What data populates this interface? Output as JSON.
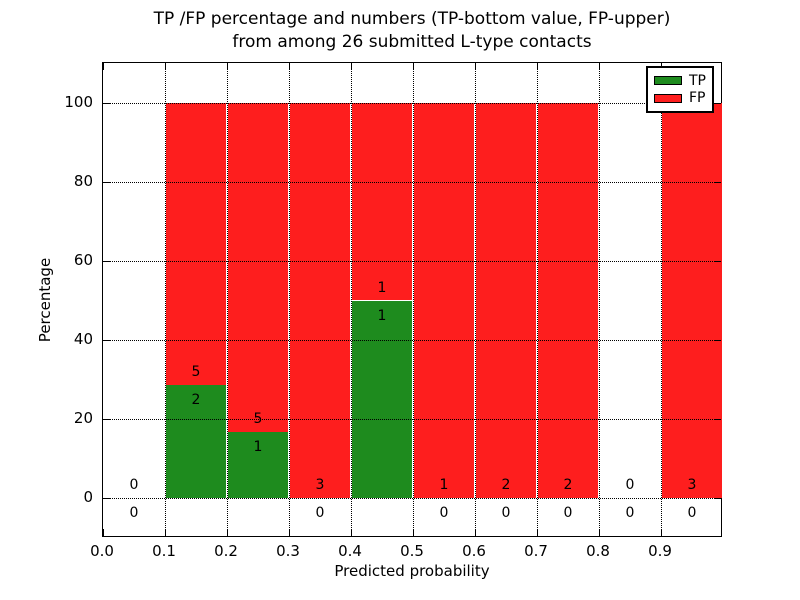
{
  "title_line1": "TP /FP percentage and numbers (TP-bottom value, FP-upper)",
  "title_line2": "from among 26 submitted L-type contacts",
  "chart_data": {
    "type": "bar",
    "stacked": true,
    "title": "TP /FP percentage and numbers (TP-bottom value, FP-upper) from among 26 submitted L-type contacts",
    "xlabel": "Predicted probability",
    "ylabel": "Percentage",
    "xlim": [
      0.0,
      1.0
    ],
    "ylim": [
      -10,
      110
    ],
    "grid": true,
    "legend_position": "upper right",
    "x_tick_labels": [
      "0.0",
      "0.1",
      "0.2",
      "0.3",
      "0.4",
      "0.5",
      "0.6",
      "0.7",
      "0.8",
      "0.9"
    ],
    "x_tick_values": [
      0.0,
      0.1,
      0.2,
      0.3,
      0.4,
      0.5,
      0.6,
      0.7,
      0.8,
      0.9
    ],
    "y_tick_values": [
      0,
      20,
      40,
      60,
      80,
      100
    ],
    "categories": [
      "0.0-0.1",
      "0.1-0.2",
      "0.2-0.3",
      "0.3-0.4",
      "0.4-0.5",
      "0.5-0.6",
      "0.6-0.7",
      "0.7-0.8",
      "0.8-0.9",
      "0.9-1.0"
    ],
    "series": [
      {
        "name": "TP",
        "counts": [
          0,
          2,
          1,
          0,
          1,
          0,
          0,
          0,
          0,
          0
        ],
        "pct": [
          0,
          28.57,
          16.67,
          0,
          50,
          0,
          0,
          0,
          0,
          0
        ]
      },
      {
        "name": "FP",
        "counts": [
          0,
          5,
          5,
          3,
          1,
          1,
          2,
          2,
          0,
          3
        ],
        "pct": [
          0,
          71.43,
          83.33,
          100,
          50,
          100,
          100,
          100,
          0,
          100
        ]
      }
    ],
    "bins": [
      {
        "x0": 0.0,
        "x1": 0.1,
        "tp": 0,
        "fp": 0,
        "tp_pct": 0,
        "fp_pct": 0
      },
      {
        "x0": 0.1,
        "x1": 0.2,
        "tp": 2,
        "fp": 5,
        "tp_pct": 28.57,
        "fp_pct": 71.43
      },
      {
        "x0": 0.2,
        "x1": 0.3,
        "tp": 1,
        "fp": 5,
        "tp_pct": 16.67,
        "fp_pct": 83.33
      },
      {
        "x0": 0.3,
        "x1": 0.4,
        "tp": 0,
        "fp": 3,
        "tp_pct": 0,
        "fp_pct": 100
      },
      {
        "x0": 0.4,
        "x1": 0.5,
        "tp": 1,
        "fp": 1,
        "tp_pct": 50,
        "fp_pct": 50
      },
      {
        "x0": 0.5,
        "x1": 0.6,
        "tp": 0,
        "fp": 1,
        "tp_pct": 0,
        "fp_pct": 100
      },
      {
        "x0": 0.6,
        "x1": 0.7,
        "tp": 0,
        "fp": 2,
        "tp_pct": 0,
        "fp_pct": 100
      },
      {
        "x0": 0.7,
        "x1": 0.8,
        "tp": 0,
        "fp": 2,
        "tp_pct": 0,
        "fp_pct": 100
      },
      {
        "x0": 0.8,
        "x1": 0.9,
        "tp": 0,
        "fp": 0,
        "tp_pct": 0,
        "fp_pct": 0
      },
      {
        "x0": 0.9,
        "x1": 1.0,
        "tp": 0,
        "fp": 3,
        "tp_pct": 0,
        "fp_pct": 100
      }
    ],
    "legend": [
      {
        "label": "TP",
        "color": "#1e8b1e"
      },
      {
        "label": "FP",
        "color": "#fe1e1e"
      }
    ],
    "colors": {
      "tp": "#1e8b1e",
      "fp": "#fe1e1e",
      "grid": "#000000",
      "text": "#000000"
    }
  }
}
